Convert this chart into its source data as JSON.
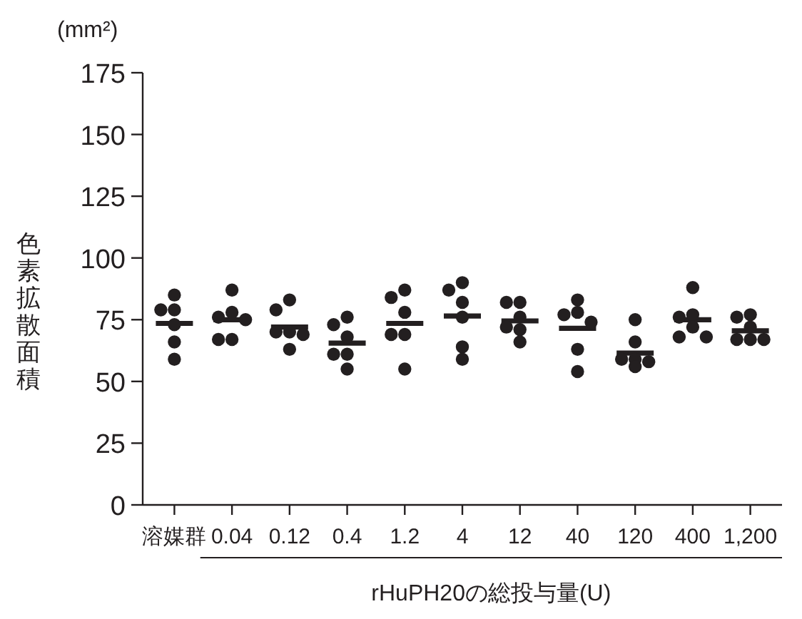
{
  "chart_data": {
    "type": "box",
    "categories": [
      "溶媒群",
      "0.04",
      "0.12",
      "0.4",
      "1.2",
      "4",
      "12",
      "40",
      "120",
      "400",
      "1,200"
    ],
    "xlabel": "rHuPH20の総投与量(U)",
    "ylabel": "色素拡散面積",
    "annotations": [
      "(mm²)"
    ],
    "ylim": [
      0,
      175
    ],
    "yticks": [
      0,
      25,
      50,
      75,
      100,
      125,
      150,
      175
    ],
    "boxes": [
      {
        "low": 73.5,
        "q1": 73.5,
        "median": 73.5,
        "q3": 73.5,
        "high": 73.5
      },
      {
        "low": 75,
        "q1": 75,
        "median": 75,
        "q3": 75,
        "high": 75
      },
      {
        "low": 72,
        "q1": 72,
        "median": 72,
        "q3": 72,
        "high": 72
      },
      {
        "low": 65.5,
        "q1": 65.5,
        "median": 65.5,
        "q3": 65.5,
        "high": 65.5
      },
      {
        "low": 73.5,
        "q1": 73.5,
        "median": 73.5,
        "q3": 73.5,
        "high": 73.5
      },
      {
        "low": 76.5,
        "q1": 76.5,
        "median": 76.5,
        "q3": 76.5,
        "high": 76.5
      },
      {
        "low": 74.5,
        "q1": 74.5,
        "median": 74.5,
        "q3": 74.5,
        "high": 74.5
      },
      {
        "low": 71.5,
        "q1": 71.5,
        "median": 71.5,
        "q3": 71.5,
        "high": 71.5
      },
      {
        "low": 61.5,
        "q1": 61.5,
        "median": 61.5,
        "q3": 61.5,
        "high": 61.5
      },
      {
        "low": 75,
        "q1": 75,
        "median": 75,
        "q3": 75,
        "high": 75
      },
      {
        "low": 70.5,
        "q1": 70.5,
        "median": 70.5,
        "q3": 70.5,
        "high": 70.5
      }
    ],
    "series": [
      {
        "type": "scatter",
        "marker": "circle",
        "color": "#231f20",
        "x": [
          "溶媒群",
          "溶媒群",
          "溶媒群",
          "溶媒群",
          "溶媒群",
          "溶媒群",
          "0.04",
          "0.04",
          "0.04",
          "0.04",
          "0.04",
          "0.04",
          "0.12",
          "0.12",
          "0.12",
          "0.12",
          "0.12",
          "0.12",
          "0.4",
          "0.4",
          "0.4",
          "0.4",
          "0.4",
          "0.4",
          "1.2",
          "1.2",
          "1.2",
          "1.2",
          "1.2",
          "1.2",
          "4",
          "4",
          "4",
          "4",
          "4",
          "4",
          "12",
          "12",
          "12",
          "12",
          "12",
          "12",
          "40",
          "40",
          "40",
          "40",
          "40",
          "40",
          "120",
          "120",
          "120",
          "120",
          "120",
          "120",
          "400",
          "400",
          "400",
          "400",
          "400",
          "400",
          "1,200",
          "1,200",
          "1,200",
          "1,200",
          "1,200",
          "1,200"
        ],
        "values": [
          85,
          79,
          79,
          73,
          66,
          59,
          87,
          78,
          76,
          75,
          67,
          67,
          83,
          79,
          70,
          70,
          69,
          63,
          76,
          73,
          68,
          61,
          61,
          55,
          87,
          84,
          78,
          69,
          69,
          55,
          90,
          87,
          82,
          76,
          64,
          59,
          82,
          82,
          76,
          71,
          72,
          66,
          83,
          78,
          77,
          74,
          63,
          54,
          75,
          66,
          59,
          59,
          58,
          56,
          88,
          77,
          76,
          72,
          68,
          68,
          77,
          76,
          72,
          67,
          67,
          67
        ]
      }
    ]
  }
}
